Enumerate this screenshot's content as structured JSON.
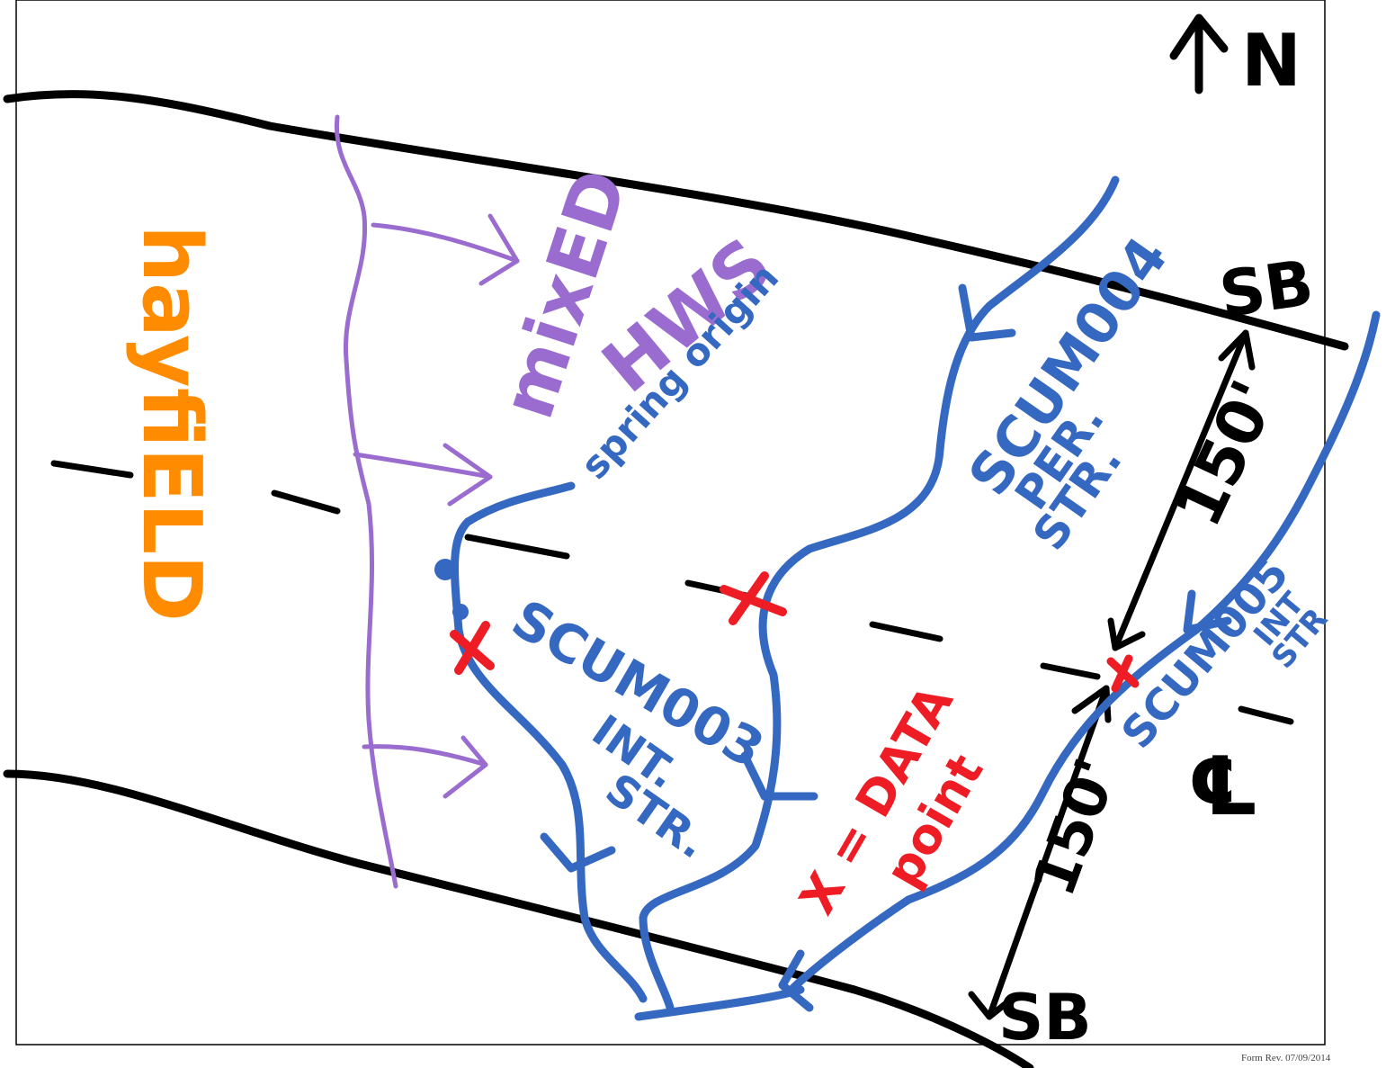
{
  "labels": {
    "north": "N",
    "sb_top": "SB",
    "sb_bottom": "SB",
    "hayfield": "hayfiELD",
    "mixed": "mixED",
    "hws": "HWS",
    "spring_origin": "spring origin",
    "scum004": "SCUM004",
    "scum004_sub1": "PER.",
    "scum004_sub2": "STR.",
    "scum003": "SCUM003",
    "scum003_sub1": "INT.",
    "scum003_sub2": "STR.",
    "scum005": "SCUM005",
    "scum005_sub1": "INT",
    "scum005_sub2": "STR",
    "dist_top": "150'",
    "dist_bottom": "150'",
    "centerline": "℄",
    "legend_x": "X = DATA",
    "legend_point": "point",
    "footer": "Form Rev. 07/09/2014"
  },
  "colors": {
    "road": "#000000",
    "stream": "#3568c0",
    "wetland": "#9a6ccf",
    "data_point": "#ee1d25",
    "hayfield": "#ff8c00"
  }
}
